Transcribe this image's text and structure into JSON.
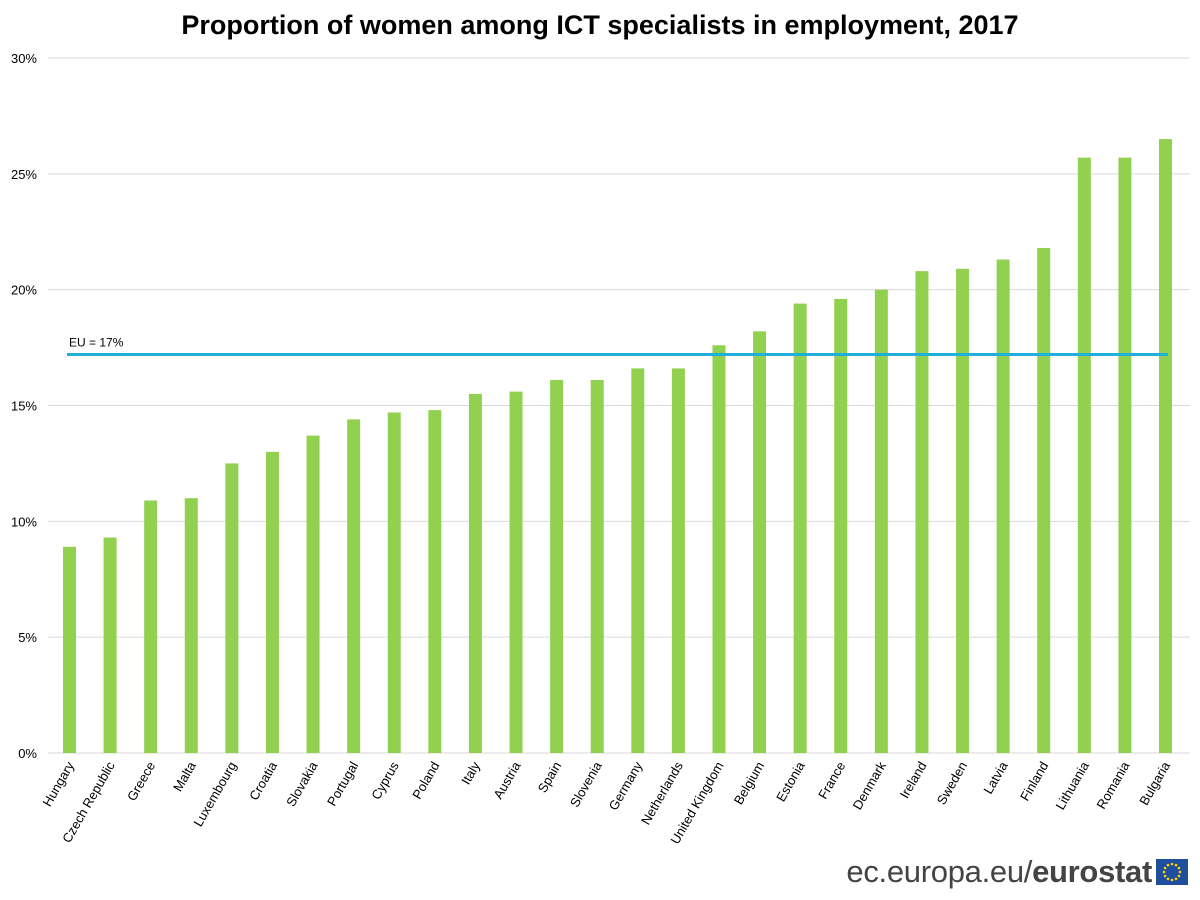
{
  "chart_data": {
    "type": "bar",
    "title": "Proportion of women among ICT specialists in employment, 2017",
    "xlabel": "",
    "ylabel": "",
    "ylim": [
      0,
      30
    ],
    "yticks": [
      0,
      5,
      10,
      15,
      20,
      25,
      30
    ],
    "ytick_labels": [
      "0%",
      "5%",
      "10%",
      "15%",
      "20%",
      "25%",
      "30%"
    ],
    "grid": true,
    "categories": [
      "Hungary",
      "Czech Republic",
      "Greece",
      "Malta",
      "Luxembourg",
      "Croatia",
      "Slovakia",
      "Portugal",
      "Cyprus",
      "Poland",
      "Italy",
      "Austria",
      "Spain",
      "Slovenia",
      "Germany",
      "Netherlands",
      "United Kingdom",
      "Belgium",
      "Estonia",
      "France",
      "Denmark",
      "Ireland",
      "Sweden",
      "Latvia",
      "Finland",
      "Lithuania",
      "Romania",
      "Bulgaria"
    ],
    "values": [
      8.9,
      9.3,
      10.9,
      11.0,
      12.5,
      13.0,
      13.7,
      14.4,
      14.7,
      14.8,
      15.5,
      15.6,
      16.1,
      16.1,
      16.6,
      16.6,
      17.6,
      18.2,
      19.4,
      19.6,
      20.0,
      20.8,
      20.9,
      21.3,
      21.8,
      25.7,
      25.7,
      26.5
    ],
    "reference_line": {
      "value": 17.2,
      "label": "EU = 17%"
    },
    "colors": {
      "bar": "#92d050",
      "reference_line": "#1fafd8",
      "grid": "#d9d9d9"
    }
  },
  "footer": {
    "site": "ec.europa.eu/",
    "brand": "eurostat",
    "logo_icon": "eu-flag-icon"
  }
}
